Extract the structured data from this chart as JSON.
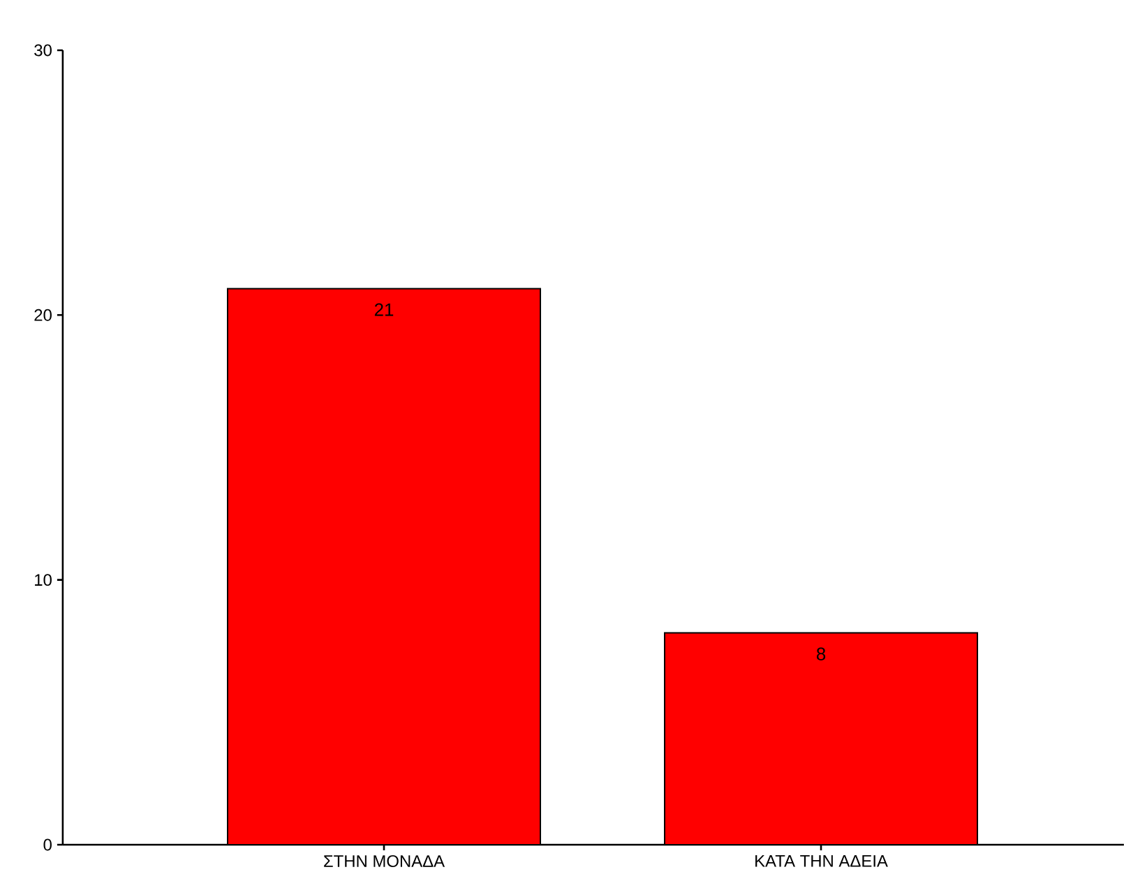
{
  "chart_data": {
    "type": "bar",
    "categories": [
      "ΣΤΗΝ ΜΟΝΑΔΑ",
      "ΚΑΤΑ ΤΗΝ ΑΔΕΙΑ"
    ],
    "values": [
      21,
      8
    ],
    "color": "#ff0000",
    "ylim": [
      0,
      30
    ],
    "yticks": [
      0,
      10,
      20,
      30
    ],
    "data_labels": true
  }
}
